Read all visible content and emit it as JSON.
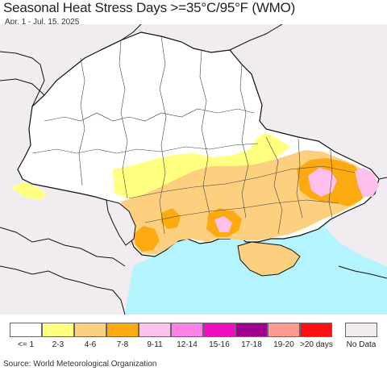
{
  "title": "Seasonal Heat Stress Days >=35°C/95°F (WMO)",
  "subtitle": "Apr. 1 - Jul. 15, 2025",
  "legend": {
    "items": [
      {
        "label": "<= 1",
        "color": "#ffffff"
      },
      {
        "label": "2-3",
        "color": "#ffff80"
      },
      {
        "label": "4-6",
        "color": "#fdd080"
      },
      {
        "label": "7-8",
        "color": "#fdaa10"
      },
      {
        "label": "9-11",
        "color": "#ffc0ee"
      },
      {
        "label": "12-14",
        "color": "#fd80e8"
      },
      {
        "label": "15-16",
        "color": "#ee10c0"
      },
      {
        "label": "17-18",
        "color": "#a00090"
      },
      {
        "label": "19-20",
        "color": "#ff9a90"
      },
      {
        "label": ">20 days",
        "color": "#ff1010"
      }
    ],
    "no_data": {
      "label": "No Data",
      "color": "#f0ecf0"
    }
  },
  "source": "Source: World Meteorological Organization",
  "map_colors": {
    "sea": "#b4f4ff",
    "land_outside": "#f0ecf0",
    "country": "#ffffff",
    "border": "#111111"
  }
}
